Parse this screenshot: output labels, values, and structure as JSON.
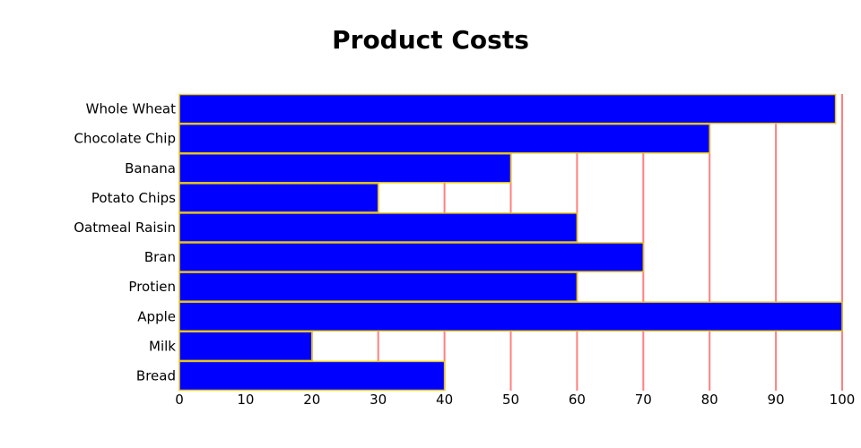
{
  "chart_data": {
    "type": "bar",
    "orientation": "horizontal",
    "title": "Product Costs",
    "xlabel": "",
    "ylabel": "",
    "categories": [
      "Whole Wheat",
      "Chocolate Chip",
      "Banana",
      "Potato Chips",
      "Oatmeal Raisin",
      "Bran",
      "Protien",
      "Apple",
      "Milk",
      "Bread"
    ],
    "values": [
      99,
      80,
      50,
      30,
      60,
      70,
      60,
      100,
      20,
      40
    ],
    "xlim": [
      0,
      100
    ],
    "xticks": [
      0,
      10,
      20,
      30,
      40,
      50,
      60,
      70,
      80,
      90,
      100
    ],
    "grid": true,
    "colors": {
      "bar_fill": "#0000ff",
      "bar_stroke": "#e6c619",
      "grid": "#ff8080"
    }
  }
}
